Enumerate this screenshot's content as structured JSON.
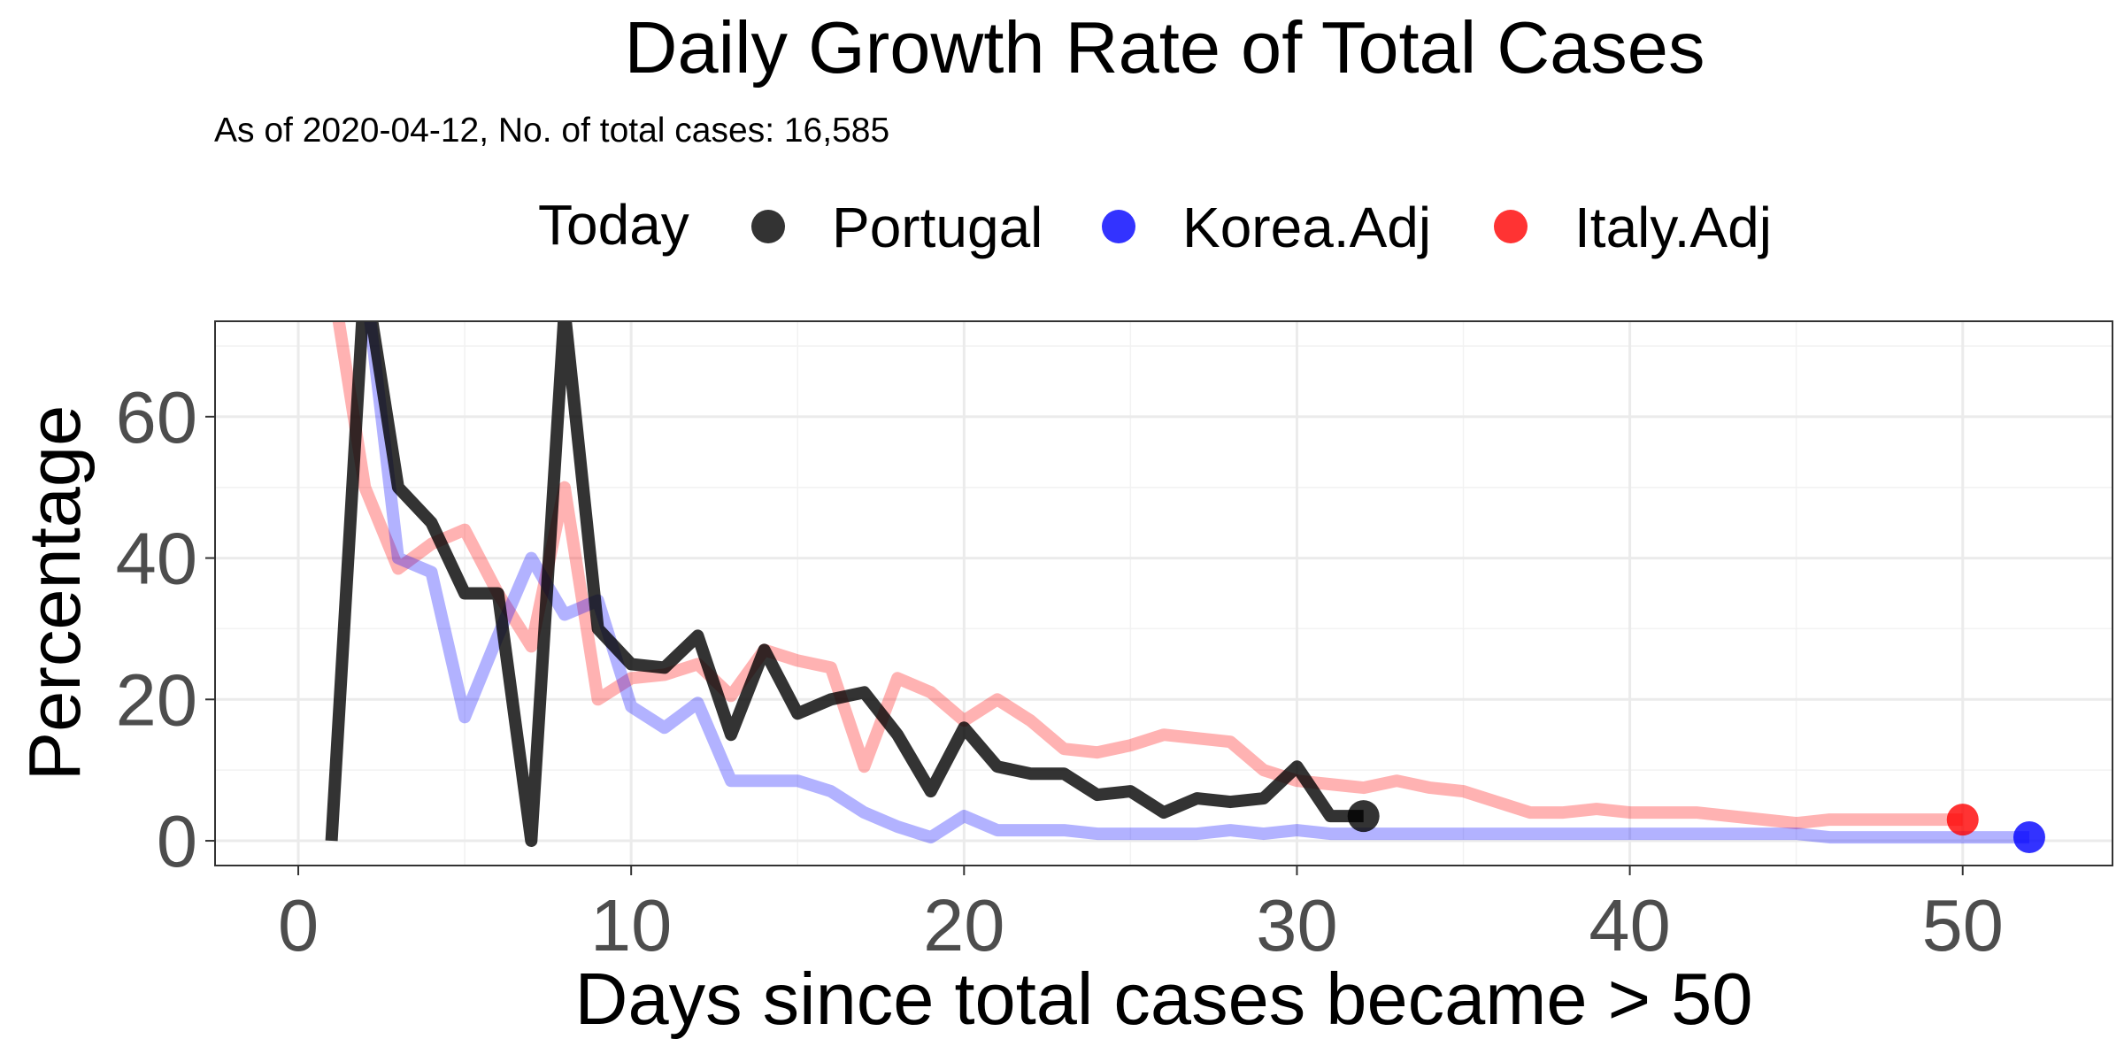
{
  "chart_data": {
    "type": "line",
    "title": "Daily Growth Rate of Total Cases",
    "subtitle": "As of 2020-04-12, No. of total cases: 16,585",
    "xlabel": "Days since total cases became > 50",
    "ylabel": "Percentage",
    "xlim": [
      -2.5,
      54.5
    ],
    "ylim": [
      -3.5,
      73.5
    ],
    "x_ticks": [
      0,
      10,
      20,
      30,
      40,
      50
    ],
    "y_ticks": [
      0,
      20,
      40,
      60
    ],
    "grid": true,
    "legend": {
      "title": "Today",
      "position": "top"
    },
    "series": [
      {
        "name": "Portugal",
        "color": "#000000",
        "opacity": 0.8,
        "x": [
          1,
          2,
          3,
          4,
          5,
          6,
          7,
          8,
          9,
          10,
          11,
          12,
          13,
          14,
          15,
          16,
          17,
          18,
          19,
          20,
          21,
          22,
          23,
          24,
          25,
          26,
          27,
          28,
          29,
          30,
          31,
          32
        ],
        "y": [
          0,
          80,
          50,
          45,
          35,
          35,
          0,
          75,
          30,
          25,
          24.5,
          29,
          15,
          27,
          18,
          20,
          21,
          15,
          7,
          16,
          10.5,
          9.5,
          9.5,
          6.5,
          7,
          4,
          6,
          5.5,
          6,
          10.5,
          3.5,
          3.5
        ]
      },
      {
        "name": "Korea.Adj",
        "color": "#0000ff",
        "opacity": 0.3,
        "x": [
          1,
          2,
          3,
          4,
          5,
          6,
          7,
          8,
          9,
          10,
          11,
          12,
          13,
          14,
          15,
          16,
          17,
          18,
          19,
          20,
          21,
          22,
          23,
          24,
          25,
          26,
          27,
          28,
          29,
          30,
          31,
          32,
          33,
          34,
          35,
          36,
          37,
          38,
          39,
          40,
          41,
          42,
          43,
          44,
          45,
          46,
          47,
          48,
          49,
          50,
          51,
          52
        ],
        "y": [
          80,
          80,
          40,
          38,
          17.5,
          29,
          40,
          32,
          34,
          19,
          16,
          19.5,
          8.5,
          8.5,
          8.5,
          7,
          4,
          2,
          0.5,
          3.5,
          1.5,
          1.5,
          1.5,
          1,
          1,
          1,
          1,
          1.5,
          1,
          1.5,
          1,
          1,
          1,
          1,
          1,
          1,
          1,
          1,
          1,
          1,
          1,
          1,
          1,
          1,
          1,
          0.5,
          0.5,
          0.5,
          0.5,
          0.5,
          0.5,
          0.5
        ]
      },
      {
        "name": "Italy.Adj",
        "color": "#ff0000",
        "opacity": 0.3,
        "x": [
          1,
          2,
          3,
          4,
          5,
          6,
          7,
          8,
          9,
          10,
          11,
          12,
          13,
          14,
          15,
          16,
          17,
          18,
          19,
          20,
          21,
          22,
          23,
          24,
          25,
          26,
          27,
          28,
          29,
          30,
          31,
          32,
          33,
          34,
          35,
          36,
          37,
          38,
          39,
          40,
          41,
          42,
          43,
          44,
          45,
          46,
          47,
          48,
          49,
          50
        ],
        "y": [
          80,
          50,
          38.5,
          42,
          44,
          35,
          27.5,
          50,
          20,
          23,
          23.5,
          25,
          20.5,
          27,
          25.5,
          24.5,
          10.5,
          23,
          21,
          17,
          20,
          17,
          13,
          12.5,
          13.5,
          15,
          14.5,
          14,
          10,
          8.5,
          8,
          7.5,
          8.5,
          7.5,
          7,
          5.5,
          4,
          4,
          4.5,
          4,
          4,
          4,
          3.5,
          3,
          2.5,
          3,
          3,
          3,
          3,
          3
        ]
      }
    ]
  }
}
